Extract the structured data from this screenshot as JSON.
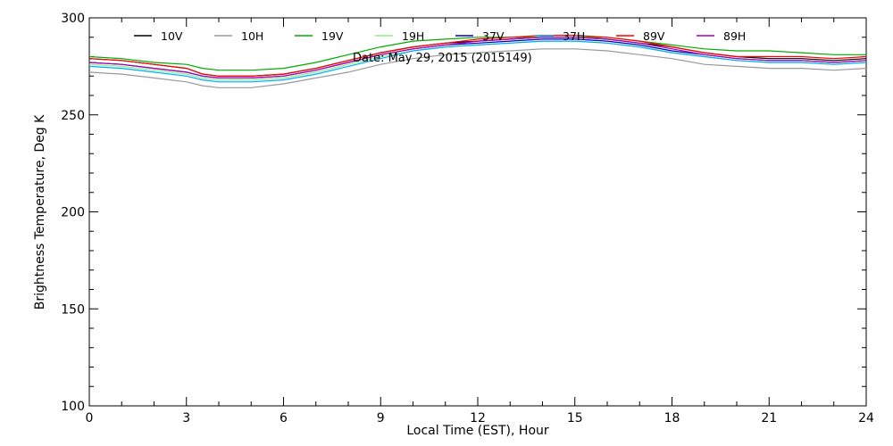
{
  "chart_data": {
    "type": "line",
    "title": "Date: May 29, 2015 (2015149)",
    "xlabel": "Local Time (EST), Hour",
    "ylabel": "Brightness Temperature, Deg K",
    "xlim": [
      0,
      24
    ],
    "ylim": [
      100,
      300
    ],
    "xticks": [
      0,
      3,
      6,
      9,
      12,
      15,
      18,
      21,
      24
    ],
    "yticks": [
      100,
      150,
      200,
      250,
      300
    ],
    "grid": false,
    "legend_position": "top",
    "x": [
      0,
      1,
      2,
      3,
      3.5,
      4,
      4.5,
      5,
      6,
      7,
      8,
      9,
      10,
      11,
      12,
      13,
      14,
      15,
      16,
      17,
      18,
      19,
      20,
      21,
      22,
      23,
      24
    ],
    "series": [
      {
        "name": "10V",
        "color": "#000000",
        "values": [
          279,
          278,
          276,
          274,
          271,
          270,
          270,
          270,
          271,
          274,
          278,
          282,
          285,
          287,
          288,
          289,
          290,
          290,
          289,
          287,
          285,
          282,
          280,
          279,
          279,
          278,
          279
        ]
      },
      {
        "name": "10H",
        "color": "#999999",
        "values": [
          272,
          271,
          269,
          267,
          265,
          264,
          264,
          264,
          266,
          269,
          272,
          276,
          279,
          281,
          282,
          283,
          284,
          284,
          283,
          281,
          279,
          276,
          275,
          274,
          274,
          273,
          274
        ]
      },
      {
        "name": "19V",
        "color": "#00aa00",
        "values": [
          280,
          279,
          277,
          276,
          274,
          273,
          273,
          273,
          274,
          277,
          281,
          285,
          288,
          289,
          290,
          290,
          290,
          290,
          290,
          288,
          286,
          284,
          283,
          283,
          282,
          281,
          281
        ]
      },
      {
        "name": "19H",
        "color": "#88ee88",
        "values": [
          276,
          275,
          273,
          271,
          269,
          268,
          268,
          268,
          269,
          272,
          276,
          280,
          283,
          285,
          286,
          287,
          288,
          288,
          287,
          285,
          282,
          280,
          278,
          277,
          277,
          276,
          277
        ]
      },
      {
        "name": "37V",
        "color": "#0000cc",
        "values": [
          277,
          276,
          274,
          272,
          270,
          269,
          269,
          269,
          270,
          273,
          277,
          281,
          284,
          286,
          287,
          288,
          289,
          289,
          288,
          286,
          283,
          281,
          279,
          278,
          278,
          277,
          278
        ]
      },
      {
        "name": "37H",
        "color": "#00aaff",
        "values": [
          275,
          274,
          272,
          270,
          268,
          267,
          267,
          267,
          268,
          271,
          275,
          279,
          283,
          285,
          286,
          287,
          288,
          288,
          287,
          285,
          282,
          280,
          278,
          277,
          277,
          276,
          277
        ]
      },
      {
        "name": "89V",
        "color": "#ff0000",
        "values": [
          279,
          278,
          276,
          274,
          271,
          270,
          270,
          270,
          271,
          274,
          278,
          282,
          285,
          287,
          289,
          290,
          291,
          291,
          290,
          288,
          285,
          282,
          280,
          280,
          280,
          279,
          280
        ]
      },
      {
        "name": "89H",
        "color": "#aa00aa",
        "values": [
          277,
          276,
          274,
          272,
          270,
          269,
          269,
          269,
          270,
          273,
          277,
          281,
          284,
          286,
          288,
          289,
          290,
          290,
          289,
          287,
          284,
          281,
          279,
          278,
          278,
          277,
          278
        ]
      }
    ]
  }
}
